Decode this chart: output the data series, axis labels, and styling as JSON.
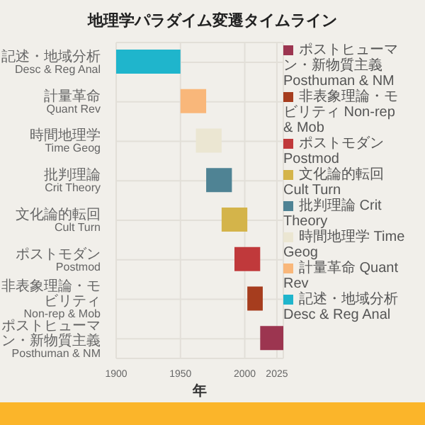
{
  "chart_data": {
    "type": "bar",
    "orientation": "horizontal",
    "title": "地理学パラダイム変遷タイムライン",
    "xlabel": "年",
    "categories": [
      "記述・地域分析 Desc & Reg Anal",
      "計量革命 Quant Rev",
      "時間地理学 Time Geog",
      "批判理論 Crit Theory",
      "文化論的転回 Cult Turn",
      "ポストモダン Postmod",
      "非表象理論・モビリティ Non-rep & Mob",
      "ポストヒューマン・新物質主義 Posthuman & NM"
    ],
    "series": [
      {
        "name": "記述・地域分析 Desc & Reg Anal",
        "color": "#1fb5cc",
        "base": [
          1900,
          null,
          null,
          null,
          null,
          null,
          null,
          null
        ],
        "values": [
          50,
          null,
          null,
          null,
          null,
          null,
          null,
          null
        ]
      },
      {
        "name": "計量革命 Quant Rev",
        "color": "#f9b77a",
        "base": [
          null,
          1950,
          null,
          null,
          null,
          null,
          null,
          null
        ],
        "values": [
          null,
          20,
          null,
          null,
          null,
          null,
          null,
          null
        ]
      },
      {
        "name": "時間地理学 Time Geog",
        "color": "#ebe6d2",
        "base": [
          null,
          null,
          1962,
          null,
          null,
          null,
          null,
          null
        ],
        "values": [
          null,
          null,
          20,
          null,
          null,
          null,
          null,
          null
        ]
      },
      {
        "name": "批判理論 Crit Theory",
        "color": "#4f8394",
        "base": [
          null,
          null,
          null,
          1970,
          null,
          null,
          null,
          null
        ],
        "values": [
          null,
          null,
          null,
          20,
          null,
          null,
          null,
          null
        ]
      },
      {
        "name": "文化論的転回 Cult Turn",
        "color": "#d4b44a",
        "base": [
          null,
          null,
          null,
          null,
          1982,
          null,
          null,
          null
        ],
        "values": [
          null,
          null,
          null,
          null,
          20,
          null,
          null,
          null
        ]
      },
      {
        "name": "ポストモダン Postmod",
        "color": "#c0393b",
        "base": [
          null,
          null,
          null,
          null,
          null,
          1992,
          null,
          null
        ],
        "values": [
          null,
          null,
          null,
          null,
          null,
          20,
          null,
          null
        ]
      },
      {
        "name": "非表象理論・モビリティ Non-rep & Mob",
        "color": "#a63d1e",
        "base": [
          null,
          null,
          null,
          null,
          null,
          null,
          2002,
          null
        ],
        "values": [
          null,
          null,
          null,
          null,
          null,
          null,
          12,
          null
        ]
      },
      {
        "name": "ポストヒューマン・新物質主義 Posthuman & NM",
        "color": "#9c3550",
        "base": [
          null,
          null,
          null,
          null,
          null,
          null,
          null,
          2012
        ],
        "values": [
          null,
          null,
          null,
          null,
          null,
          null,
          null,
          18
        ]
      }
    ],
    "xlim": [
      1900,
      2030
    ],
    "xticks": [
      1900,
      1950,
      2000,
      2025
    ],
    "grid": true,
    "legend": "top right"
  }
}
